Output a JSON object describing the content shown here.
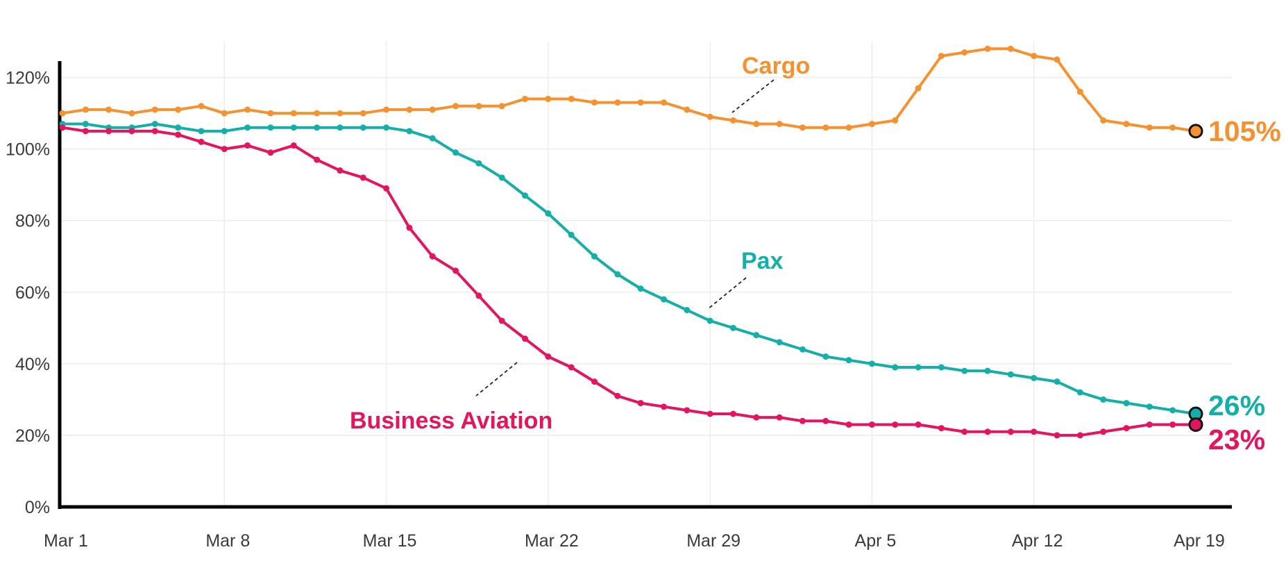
{
  "chart_data": {
    "type": "line",
    "title": "",
    "xlabel": "",
    "ylabel": "",
    "ylim": [
      0,
      130
    ],
    "yticks": [
      0,
      20,
      40,
      60,
      80,
      100,
      120
    ],
    "ytick_labels": [
      "0%",
      "20%",
      "40%",
      "60%",
      "80%",
      "100%",
      "120%"
    ],
    "xtick_labels": [
      "Mar 1",
      "Mar 8",
      "Mar 15",
      "Mar 22",
      "Mar 29",
      "Apr 5",
      "Apr 12",
      "Apr 19"
    ],
    "x": [
      "Mar 1",
      "Mar 2",
      "Mar 3",
      "Mar 4",
      "Mar 5",
      "Mar 6",
      "Mar 7",
      "Mar 8",
      "Mar 9",
      "Mar 10",
      "Mar 11",
      "Mar 12",
      "Mar 13",
      "Mar 14",
      "Mar 15",
      "Mar 16",
      "Mar 17",
      "Mar 18",
      "Mar 19",
      "Mar 20",
      "Mar 21",
      "Mar 22",
      "Mar 23",
      "Mar 24",
      "Mar 25",
      "Mar 26",
      "Mar 27",
      "Mar 28",
      "Mar 29",
      "Mar 30",
      "Mar 31",
      "Apr 1",
      "Apr 2",
      "Apr 3",
      "Apr 4",
      "Apr 5",
      "Apr 6",
      "Apr 7",
      "Apr 8",
      "Apr 9",
      "Apr 10",
      "Apr 11",
      "Apr 12",
      "Apr 13",
      "Apr 14",
      "Apr 15",
      "Apr 16",
      "Apr 17",
      "Apr 18",
      "Apr 19"
    ],
    "grid": true,
    "series": [
      {
        "name": "Cargo",
        "color": "#F5922F",
        "end_label": "105%",
        "values": [
          110,
          111,
          111,
          110,
          111,
          111,
          112,
          110,
          111,
          110,
          110,
          110,
          110,
          110,
          111,
          111,
          111,
          112,
          112,
          112,
          114,
          114,
          114,
          113,
          113,
          113,
          113,
          111,
          109,
          108,
          107,
          107,
          106,
          106,
          106,
          107,
          108,
          117,
          126,
          127,
          128,
          128,
          126,
          125,
          116,
          108,
          107,
          106,
          106,
          105
        ]
      },
      {
        "name": "Pax",
        "color": "#14AFA9",
        "end_label": "26%",
        "values": [
          107,
          107,
          106,
          106,
          107,
          106,
          105,
          105,
          106,
          106,
          106,
          106,
          106,
          106,
          106,
          105,
          103,
          99,
          96,
          92,
          87,
          82,
          76,
          70,
          65,
          61,
          58,
          55,
          52,
          50,
          48,
          46,
          44,
          42,
          41,
          40,
          39,
          39,
          39,
          38,
          38,
          37,
          36,
          35,
          32,
          30,
          29,
          28,
          27,
          26
        ]
      },
      {
        "name": "Business Aviation",
        "color": "#E5145F",
        "end_label": "23%",
        "values": [
          106,
          105,
          105,
          105,
          105,
          104,
          102,
          100,
          101,
          99,
          101,
          97,
          94,
          92,
          89,
          78,
          70,
          66,
          59,
          52,
          47,
          42,
          39,
          35,
          31,
          29,
          28,
          27,
          26,
          26,
          25,
          25,
          24,
          24,
          23,
          23,
          23,
          23,
          22,
          21,
          21,
          21,
          21,
          20,
          20,
          21,
          22,
          23,
          23,
          23
        ]
      }
    ]
  }
}
